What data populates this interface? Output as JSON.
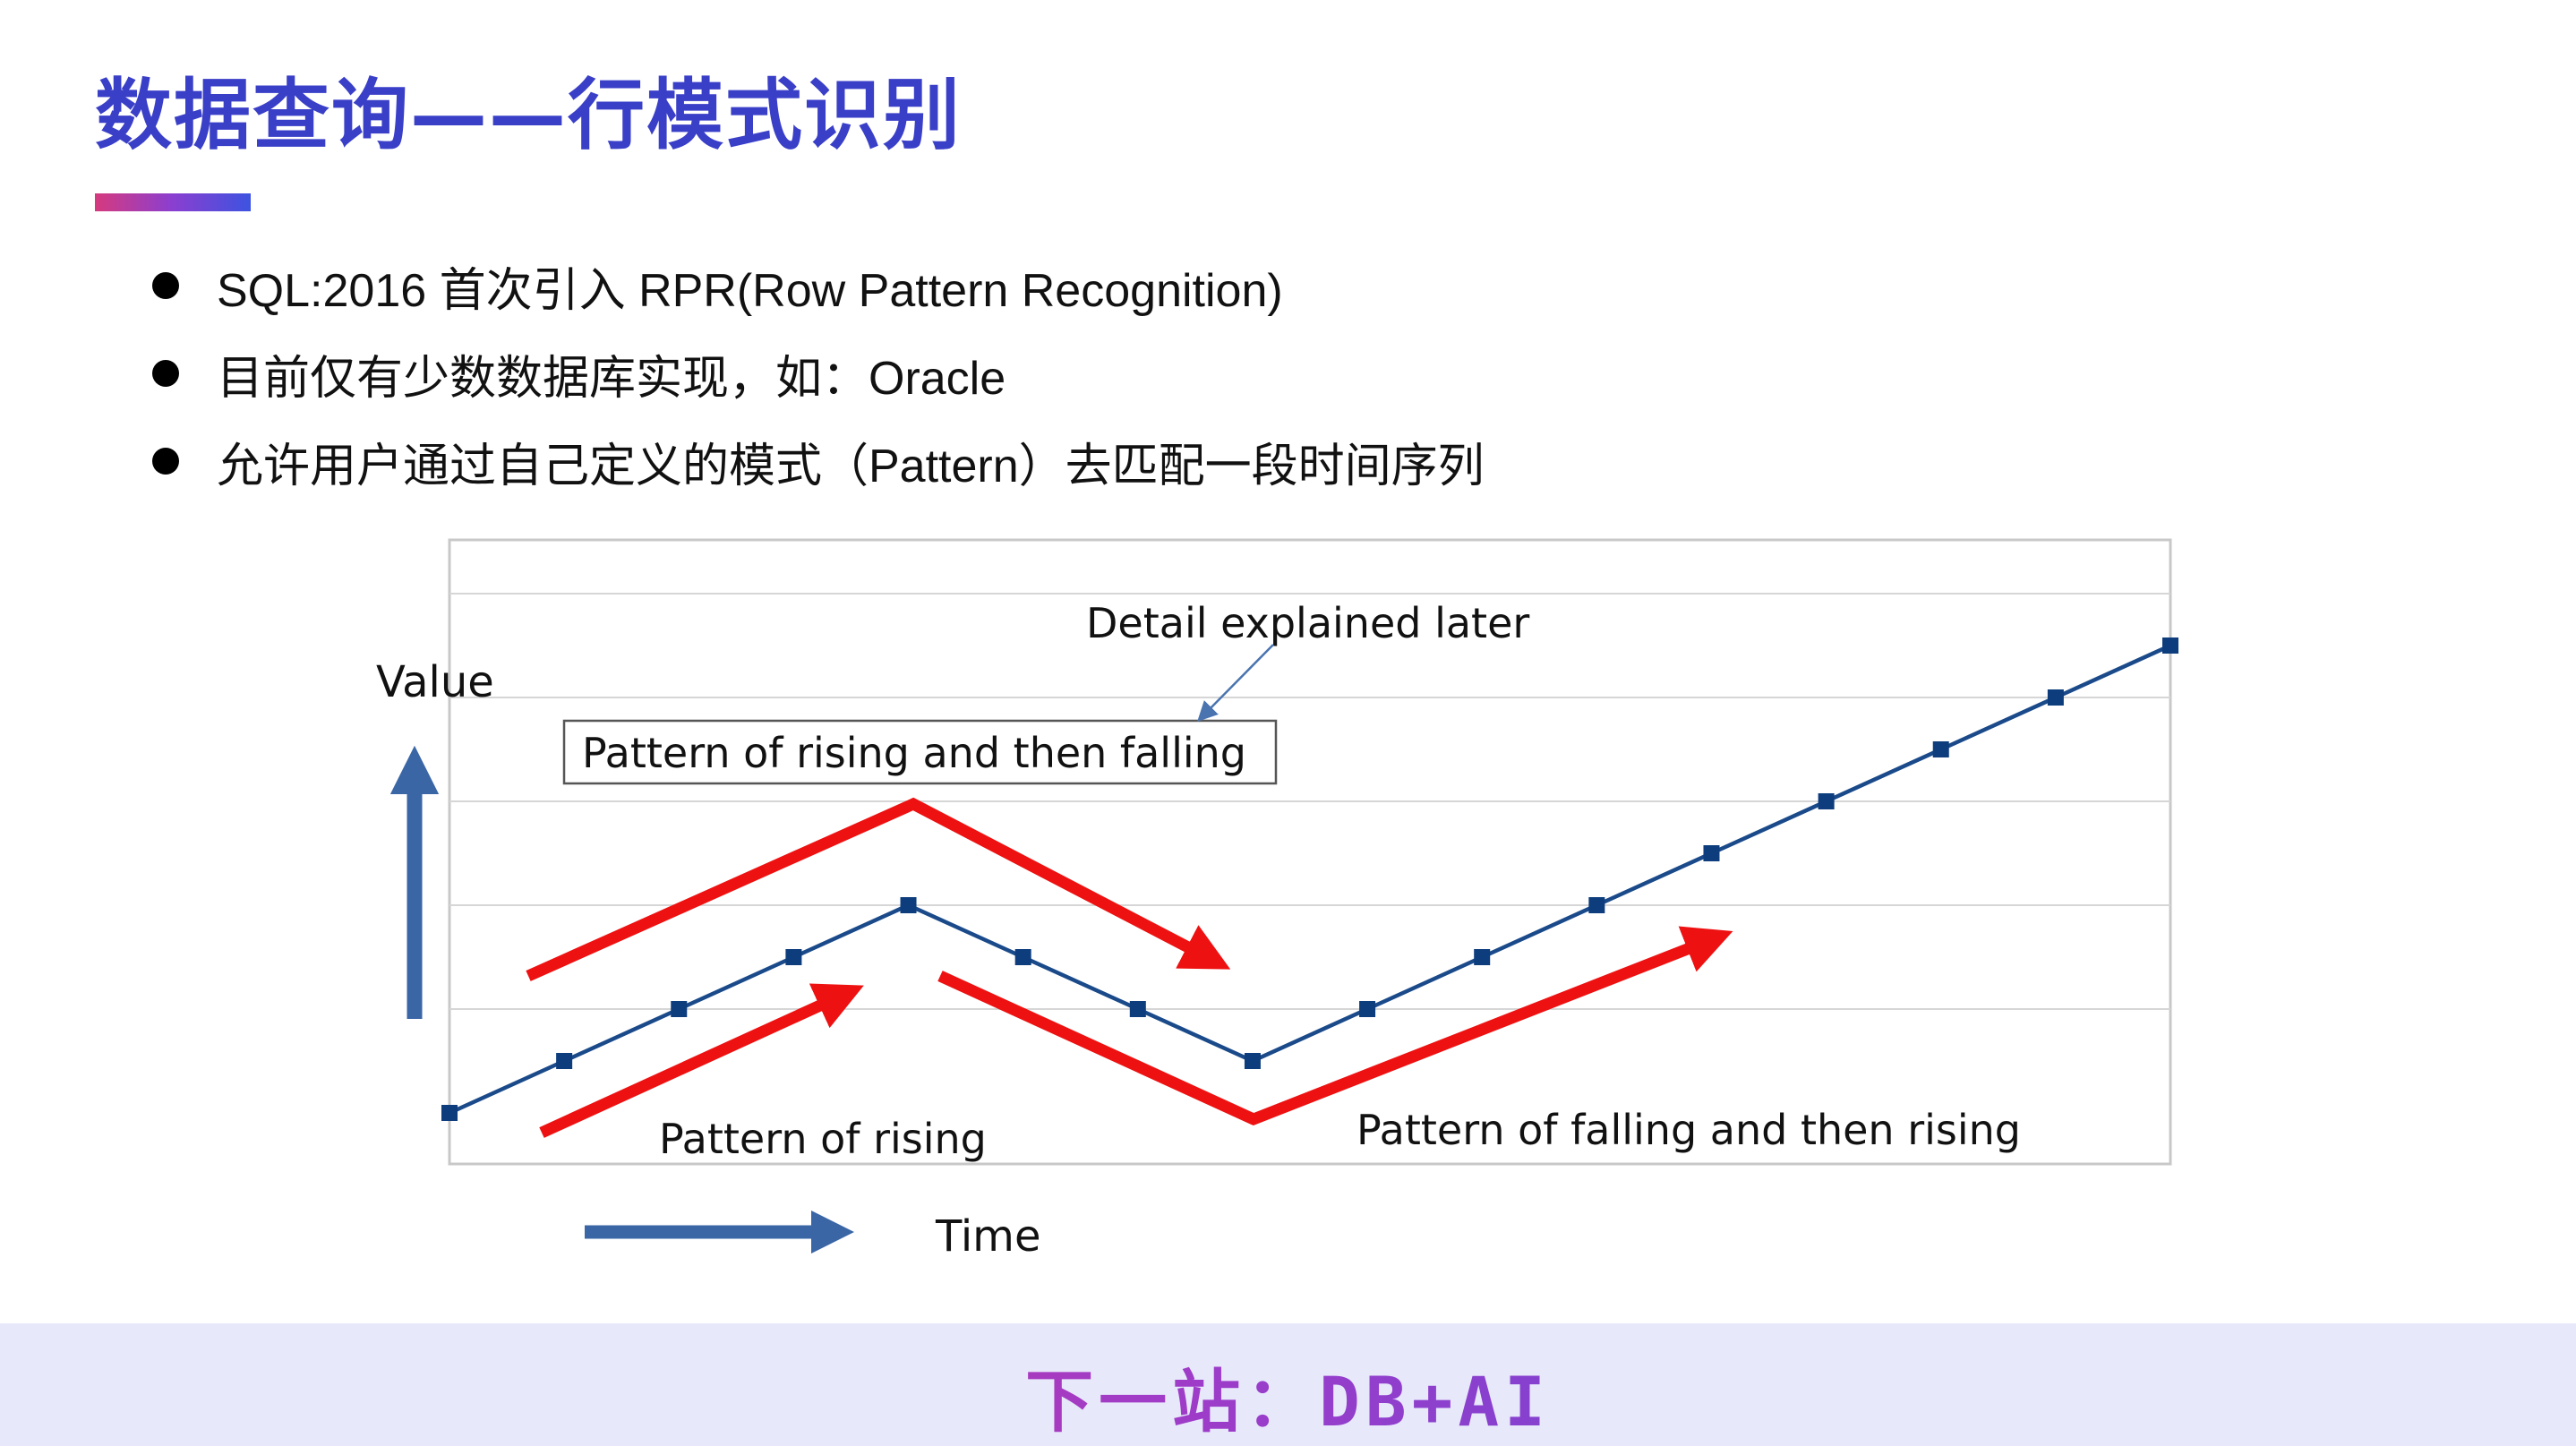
{
  "slide": {
    "title": "数据查询——行模式识别",
    "bullets": [
      "SQL:2016 首次引入 RPR(Row Pattern Recognition)",
      "目前仅有少数数据库实现，如：Oracle",
      "允许用户通过自己定义的模式（Pattern）去匹配一段时间序列"
    ],
    "footer": "下一站：DB+AI"
  },
  "chart_data": {
    "type": "line",
    "x": [
      1,
      2,
      3,
      4,
      5,
      6,
      7,
      8,
      9,
      10,
      11,
      12,
      13,
      14,
      15,
      16
    ],
    "series": [
      {
        "values": [
          0,
          1,
          2,
          3,
          4,
          3,
          2,
          1,
          2,
          3,
          4,
          5,
          6,
          7,
          8,
          9
        ]
      }
    ],
    "ylabel": "Value",
    "xlabel": "Time",
    "ylim": [
      0,
      10
    ],
    "grid": true,
    "annotations": {
      "pattern_box": "Pattern of rising and then falling",
      "detail": "Detail explained later",
      "rising": "Pattern of rising",
      "falling_rising": "Pattern of falling and then rising"
    },
    "colors": {
      "line": "#1a4a8a",
      "marker": "#0d3d7d",
      "pattern_arrow": "#ee1111",
      "axis_arrow": "#3a66a6",
      "grid": "#d6d6d6"
    }
  }
}
